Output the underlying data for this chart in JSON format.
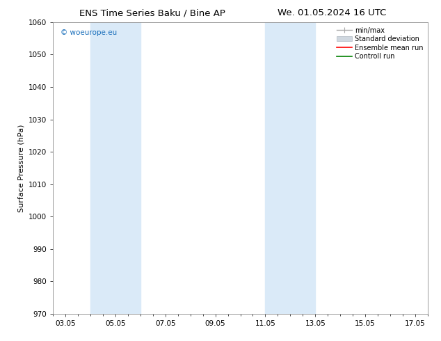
{
  "title_left": "ENS Time Series Baku / Bine AP",
  "title_right": "We. 01.05.2024 16 UTC",
  "ylabel": "Surface Pressure (hPa)",
  "ylim": [
    970,
    1060
  ],
  "yticks": [
    970,
    980,
    990,
    1000,
    1010,
    1020,
    1030,
    1040,
    1050,
    1060
  ],
  "xtick_labels": [
    "03.05",
    "05.05",
    "07.05",
    "09.05",
    "11.05",
    "13.05",
    "15.05",
    "17.05"
  ],
  "xtick_positions": [
    0,
    2,
    4,
    6,
    8,
    10,
    12,
    14
  ],
  "xlim": [
    -0.5,
    14.5
  ],
  "shaded_bands": [
    {
      "x_start": 1.0,
      "x_end": 3.0
    },
    {
      "x_start": 8.0,
      "x_end": 10.0
    }
  ],
  "band_color": "#daeaf8",
  "copyright_text": "© woeurope.eu",
  "copyright_color": "#1a6fbb",
  "legend_entries": [
    {
      "label": "min/max",
      "color": "#aaaaaa",
      "lw": 1.0
    },
    {
      "label": "Standard deviation",
      "color": "#cccccc",
      "lw": 5
    },
    {
      "label": "Ensemble mean run",
      "color": "#ff0000",
      "lw": 1.2
    },
    {
      "label": "Controll run",
      "color": "#008000",
      "lw": 1.2
    }
  ],
  "background_color": "#ffffff",
  "title_fontsize": 9.5,
  "ylabel_fontsize": 8,
  "tick_fontsize": 7.5,
  "copyright_fontsize": 7.5,
  "legend_fontsize": 7.0
}
